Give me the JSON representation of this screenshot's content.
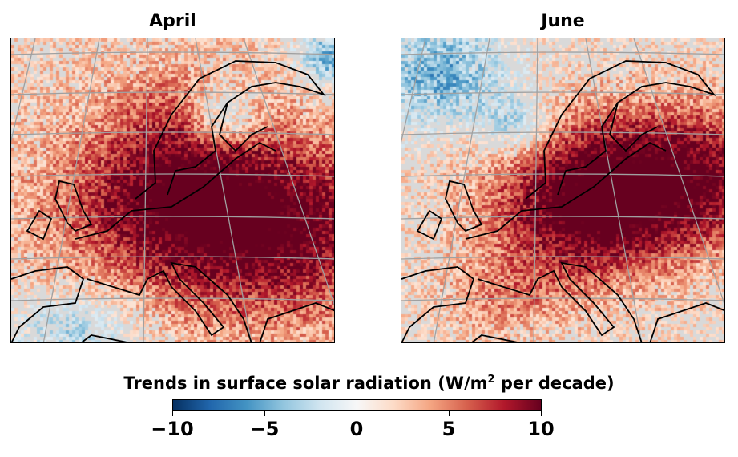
{
  "panels": [
    {
      "title": "April",
      "month": "april"
    },
    {
      "title": "June",
      "month": "june"
    }
  ],
  "colorbar": {
    "label_main": "Trends in surface solar radiation (W/m",
    "label_sup": "2",
    "label_end": " per decade)",
    "range": [
      -10,
      10
    ],
    "ticks": [
      "−10",
      "−5",
      "0",
      "5",
      "10"
    ],
    "tick_values": [
      -10,
      -5,
      0,
      5,
      10
    ],
    "colormap": [
      "#053061",
      "#2166ac",
      "#4393c3",
      "#92c5de",
      "#d1e5f0",
      "#f7f7f7",
      "#fddbc7",
      "#f4a582",
      "#d6604d",
      "#b2182b",
      "#67001f"
    ],
    "insignificant_color": "#d9d9d9",
    "gridline_color": "#a0a0a0",
    "coastline_color": "#000000"
  }
}
